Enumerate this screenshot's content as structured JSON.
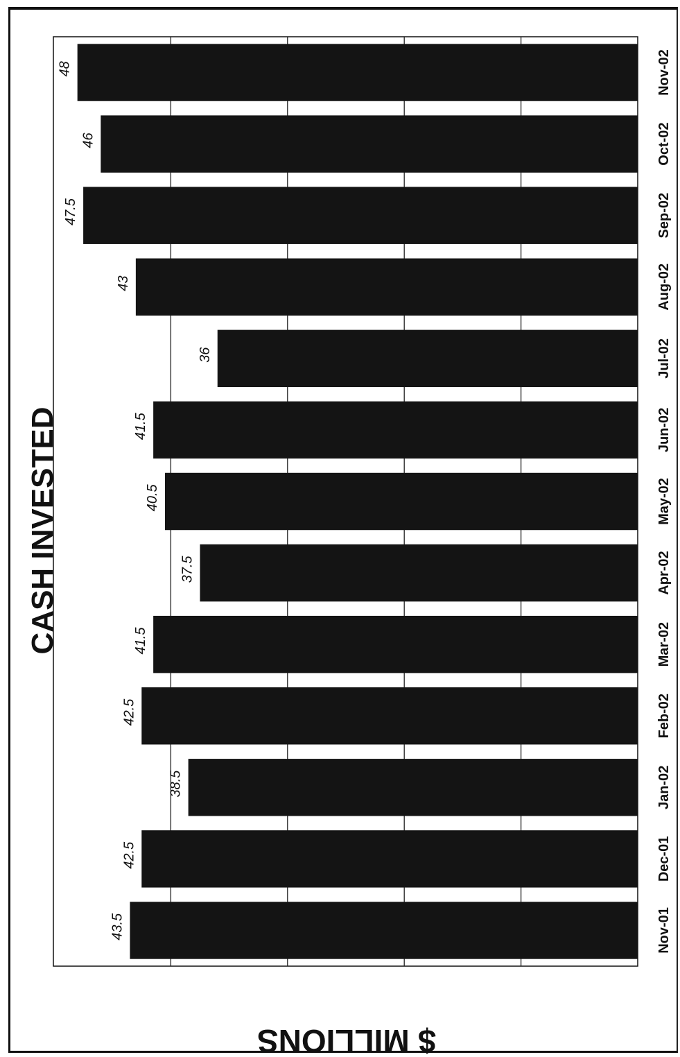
{
  "chart_data": {
    "type": "bar",
    "orientation": "horizontal",
    "title": "CASH INVESTED",
    "ylabel": "$ MILLIONS",
    "categories": [
      "Nov-01",
      "Dec-01",
      "Jan-02",
      "Feb-02",
      "Mar-02",
      "Apr-02",
      "May-02",
      "Jun-02",
      "Jul-02",
      "Aug-02",
      "Sep-02",
      "Oct-02",
      "Nov-02"
    ],
    "values": [
      43.5,
      42.5,
      38.5,
      42.5,
      41.5,
      37.5,
      40.5,
      41.5,
      36,
      43,
      47.5,
      46,
      48
    ],
    "value_labels": [
      "43.5",
      "42.5",
      "38.5",
      "42.5",
      "41.5",
      "37.5",
      "40.5",
      "41.5",
      "36",
      "43",
      "47.5",
      "46",
      "48"
    ],
    "ylim": [
      0,
      50
    ],
    "grid": true,
    "bar_color": "#141414"
  }
}
